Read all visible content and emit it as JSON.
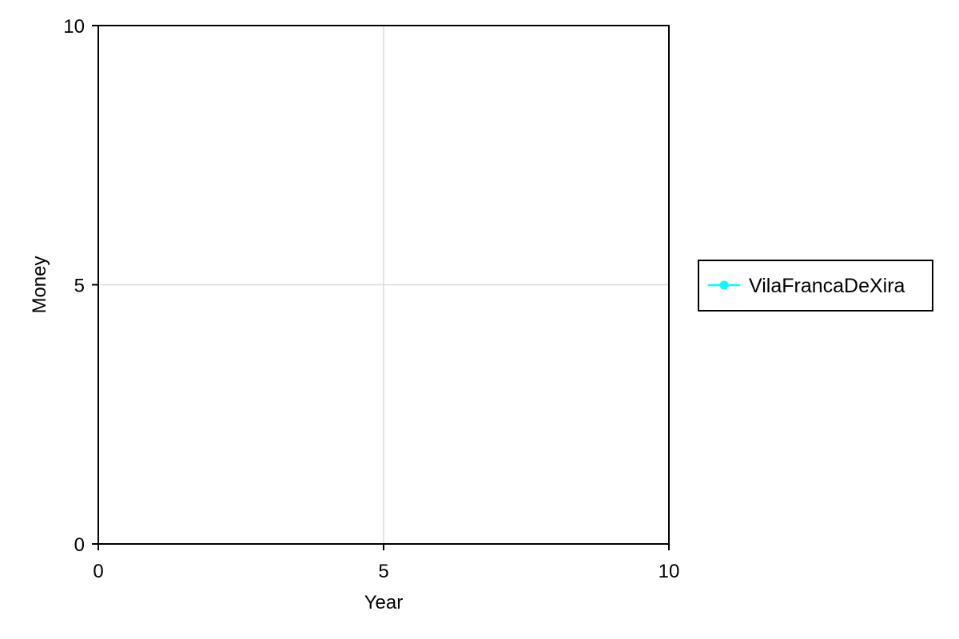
{
  "chart_data": {
    "type": "line",
    "title": "",
    "xlabel": "Year",
    "ylabel": "Money",
    "xlim": [
      0,
      10
    ],
    "ylim": [
      0,
      10
    ],
    "xticks": [
      0,
      5,
      10
    ],
    "yticks": [
      0,
      5,
      10
    ],
    "xtick_labels": [
      "0",
      "5",
      "10"
    ],
    "ytick_labels": [
      "0",
      "5",
      "10"
    ],
    "grid": true,
    "legend_position": "right",
    "series": [
      {
        "name": "VilaFrancaDeXira",
        "color": "#00ffff",
        "marker": "circle",
        "x": [],
        "y": []
      }
    ]
  }
}
